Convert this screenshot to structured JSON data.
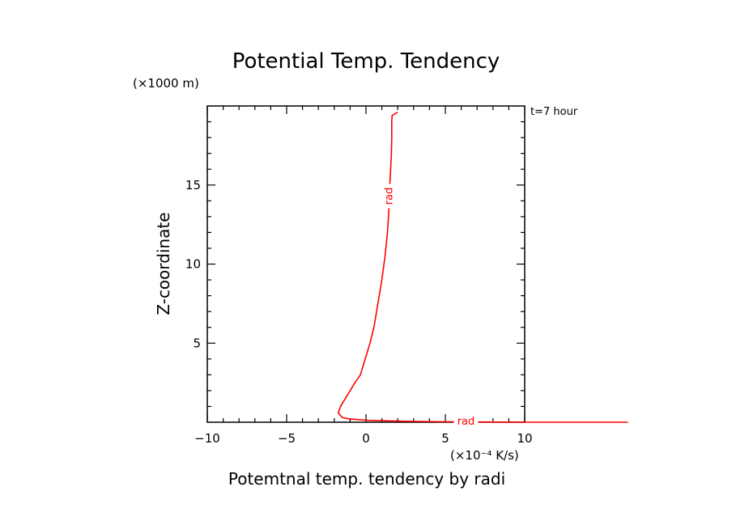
{
  "chart_data": {
    "type": "line",
    "title": "Potential Temp. Tendency",
    "xlabel": "Potemtnal temp. tendency by radi",
    "ylabel": "Z-coordinate",
    "x_units": "(×10⁻⁴ K/s)",
    "y_units": "(×1000 m)",
    "annotation": "t=7 hour",
    "xlim": [
      -10,
      10
    ],
    "ylim": [
      0,
      20
    ],
    "x_ticks": [
      -10,
      -5,
      0,
      5,
      10
    ],
    "x_tick_labels": [
      "−10",
      "−5",
      "0",
      "5",
      "10"
    ],
    "y_ticks": [
      5,
      10,
      15
    ],
    "y_tick_labels": [
      "5",
      "10",
      "15"
    ],
    "grid": false,
    "series_color": "#ff0000",
    "series": [
      {
        "name": "rad",
        "contour_labels": [
          "rad",
          "rad"
        ],
        "x": [
          16.5,
          10,
          5,
          2.5,
          0.2,
          -1.0,
          -1.5,
          -1.75,
          -1.6,
          -1.3,
          -1.0,
          -0.7,
          -0.35,
          -0.05,
          0.25,
          0.5,
          0.75,
          1.0,
          1.2,
          1.35,
          1.45,
          1.5,
          1.55,
          1.6,
          1.62,
          1.62,
          1.65,
          2.0
        ],
        "y": [
          0.0,
          0.0,
          0.03,
          0.06,
          0.12,
          0.2,
          0.3,
          0.6,
          1.0,
          1.5,
          2.0,
          2.5,
          3.0,
          4.0,
          5.0,
          6.0,
          7.5,
          9.0,
          10.5,
          12.0,
          13.5,
          15.0,
          16.0,
          17.0,
          18.0,
          19.0,
          19.4,
          19.6
        ]
      }
    ]
  }
}
